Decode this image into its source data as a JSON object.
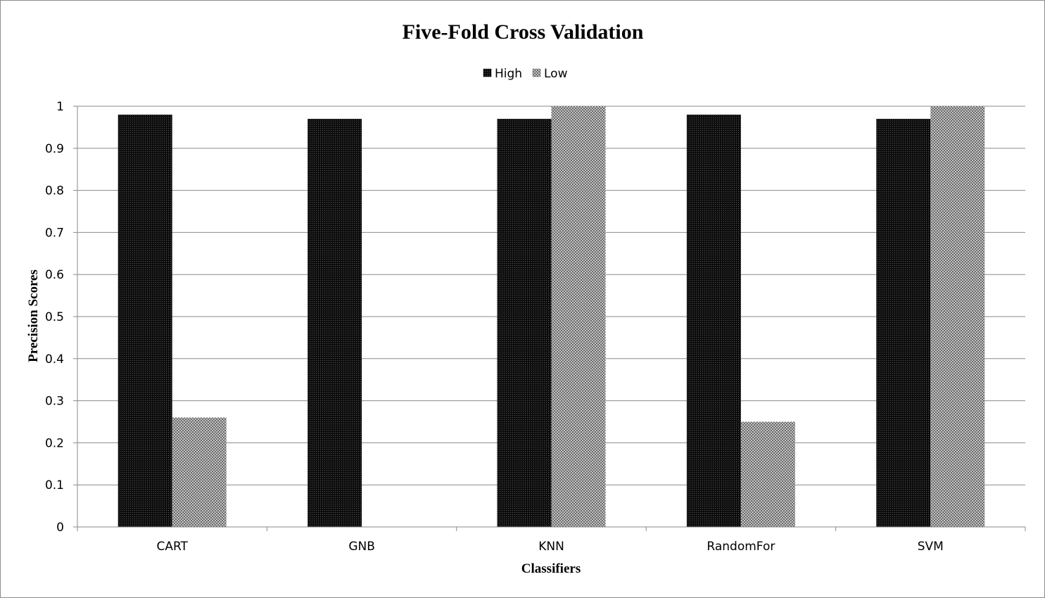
{
  "chart_data": {
    "type": "bar",
    "title": "Five-Fold Cross Validation",
    "xlabel": "Classifiers",
    "ylabel": "Precision Scores",
    "categories": [
      "CART",
      "GNB",
      "KNN",
      "RandomFor",
      "SVM"
    ],
    "series": [
      {
        "name": "High",
        "values": [
          0.98,
          0.97,
          0.97,
          0.98,
          0.97
        ],
        "color": "#111111",
        "pattern": "dark-dots"
      },
      {
        "name": "Low",
        "values": [
          0.26,
          0,
          1.0,
          0.25,
          1.0
        ],
        "color": "#999999",
        "pattern": "checker"
      }
    ],
    "yticks": [
      "0",
      "0.1",
      "0.2",
      "0.3",
      "0.4",
      "0.5",
      "0.6",
      "0.7",
      "0.8",
      "0.9",
      "1"
    ],
    "ylim": [
      0,
      1
    ],
    "grid": true,
    "legend_position": "top-center"
  }
}
